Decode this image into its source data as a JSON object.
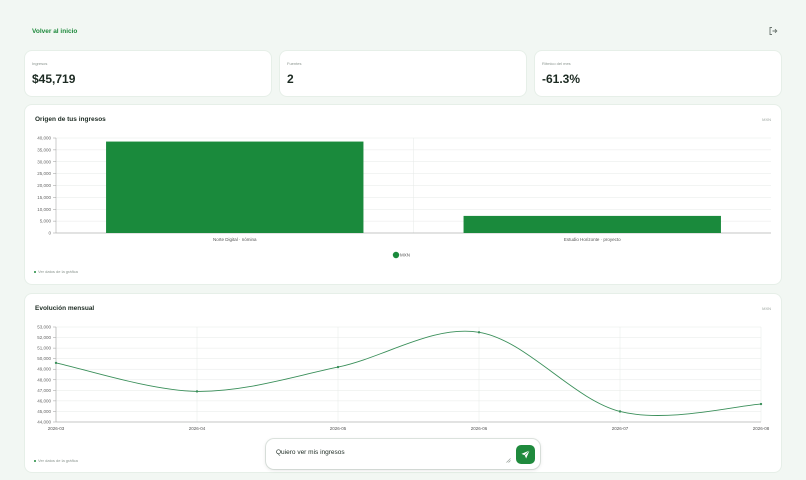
{
  "header": {
    "back_label": "Volver al inicio",
    "logout_icon": "logout-icon"
  },
  "stats": [
    {
      "label": "Ingresos",
      "value": "$45,719"
    },
    {
      "label": "Fuentes",
      "value": "2"
    },
    {
      "label": "Rítmico del mes",
      "value": "-61.3%"
    }
  ],
  "origin_card": {
    "title": "Origen de tus ingresos",
    "unit": "MXN",
    "toggle_label": "Ver datos de la gráfica"
  },
  "monthly_card": {
    "title": "Evolución mensual",
    "unit": "MXN",
    "toggle_label": "Ver datos de la gráfica"
  },
  "composer": {
    "text": "Quiero ver mis ingresos",
    "send_icon": "send-icon"
  },
  "colors": {
    "accent": "#1f8a3d",
    "bar": "#1a8a3c",
    "line": "#3a8f5a",
    "background": "#f2f7f3"
  },
  "chart_data": [
    {
      "type": "bar",
      "categories": [
        "Norte Digital · nómina",
        "Estudio Horizonte · proyecto"
      ],
      "series": [
        {
          "name": "MXN",
          "values": [
            38500,
            7200
          ]
        }
      ],
      "ylim": [
        0,
        40000
      ],
      "yticks": [
        0,
        5000,
        10000,
        15000,
        20000,
        25000,
        30000,
        35000,
        40000
      ],
      "ytick_labels": [
        "0",
        "5,000",
        "10,000",
        "15,000",
        "20,000",
        "25,000",
        "30,000",
        "35,000",
        "40,000"
      ],
      "legend": "bottom",
      "grid": true
    },
    {
      "type": "line",
      "x": [
        "2026-03",
        "2026-04",
        "2026-05",
        "2026-06",
        "2026-07",
        "2026-08"
      ],
      "series": [
        {
          "values": [
            49600,
            46900,
            49200,
            52500,
            45000,
            45700
          ]
        }
      ],
      "ylim": [
        44000,
        53000
      ],
      "yticks": [
        44000,
        45000,
        46000,
        47000,
        48000,
        49000,
        50000,
        51000,
        52000,
        53000
      ],
      "ytick_labels": [
        "44,000",
        "45,000",
        "46,000",
        "47,000",
        "48,000",
        "49,000",
        "50,000",
        "51,000",
        "52,000",
        "53,000"
      ],
      "grid": true
    }
  ]
}
